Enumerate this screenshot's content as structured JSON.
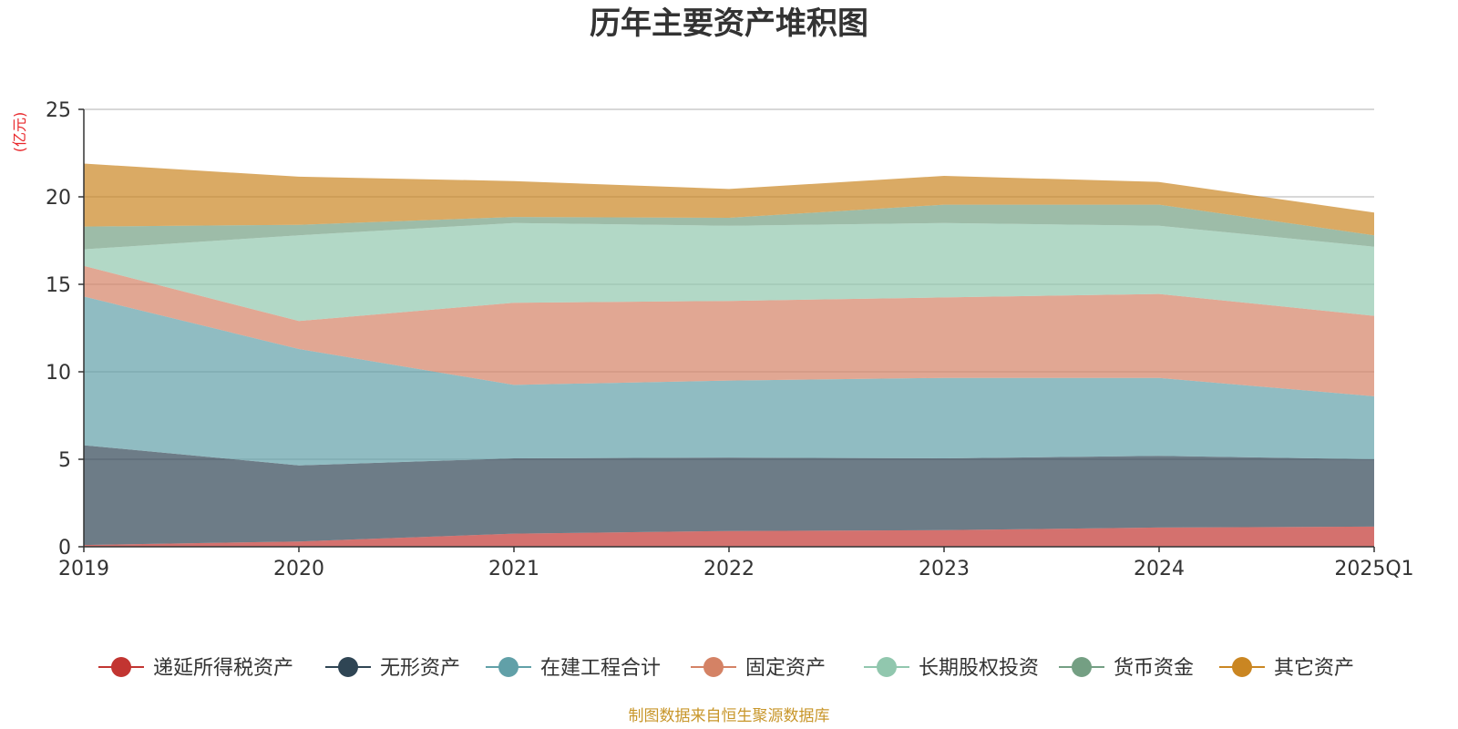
{
  "chart_data": {
    "type": "area",
    "stacked": true,
    "title": "历年主要资产堆积图",
    "unit_label": "(亿元)",
    "source": "制图数据来自恒生聚源数据库",
    "categories": [
      "2019",
      "2020",
      "2021",
      "2022",
      "2023",
      "2024",
      "2025Q1"
    ],
    "ylim": [
      0,
      25
    ],
    "yticks": [
      0,
      5,
      10,
      15,
      20,
      25
    ],
    "grid": true,
    "legend_position": "bottom",
    "series": [
      {
        "name": "递延所得税资产",
        "color": "#c23531",
        "values": [
          0.1,
          0.3,
          0.75,
          0.9,
          0.95,
          1.1,
          1.15
        ]
      },
      {
        "name": "无形资产",
        "color": "#2f4554",
        "values": [
          5.7,
          4.35,
          4.3,
          4.2,
          4.1,
          4.1,
          3.85
        ]
      },
      {
        "name": "在建工程合计",
        "color": "#61a0a8",
        "values": [
          8.5,
          6.65,
          4.2,
          4.4,
          4.6,
          4.45,
          3.6
        ]
      },
      {
        "name": "固定资产",
        "color": "#d48265",
        "values": [
          1.75,
          1.6,
          4.7,
          4.55,
          4.6,
          4.8,
          4.6
        ]
      },
      {
        "name": "长期股权投资",
        "color": "#91c7ae",
        "values": [
          0.95,
          4.9,
          4.55,
          4.3,
          4.25,
          3.9,
          3.95
        ]
      },
      {
        "name": "货币资金",
        "color": "#749f83",
        "values": [
          1.3,
          0.6,
          0.35,
          0.45,
          1.05,
          1.2,
          0.65
        ]
      },
      {
        "name": "其它资产",
        "color": "#ca8622",
        "values": [
          3.6,
          2.75,
          2.05,
          1.65,
          1.65,
          1.3,
          1.3
        ]
      }
    ]
  }
}
